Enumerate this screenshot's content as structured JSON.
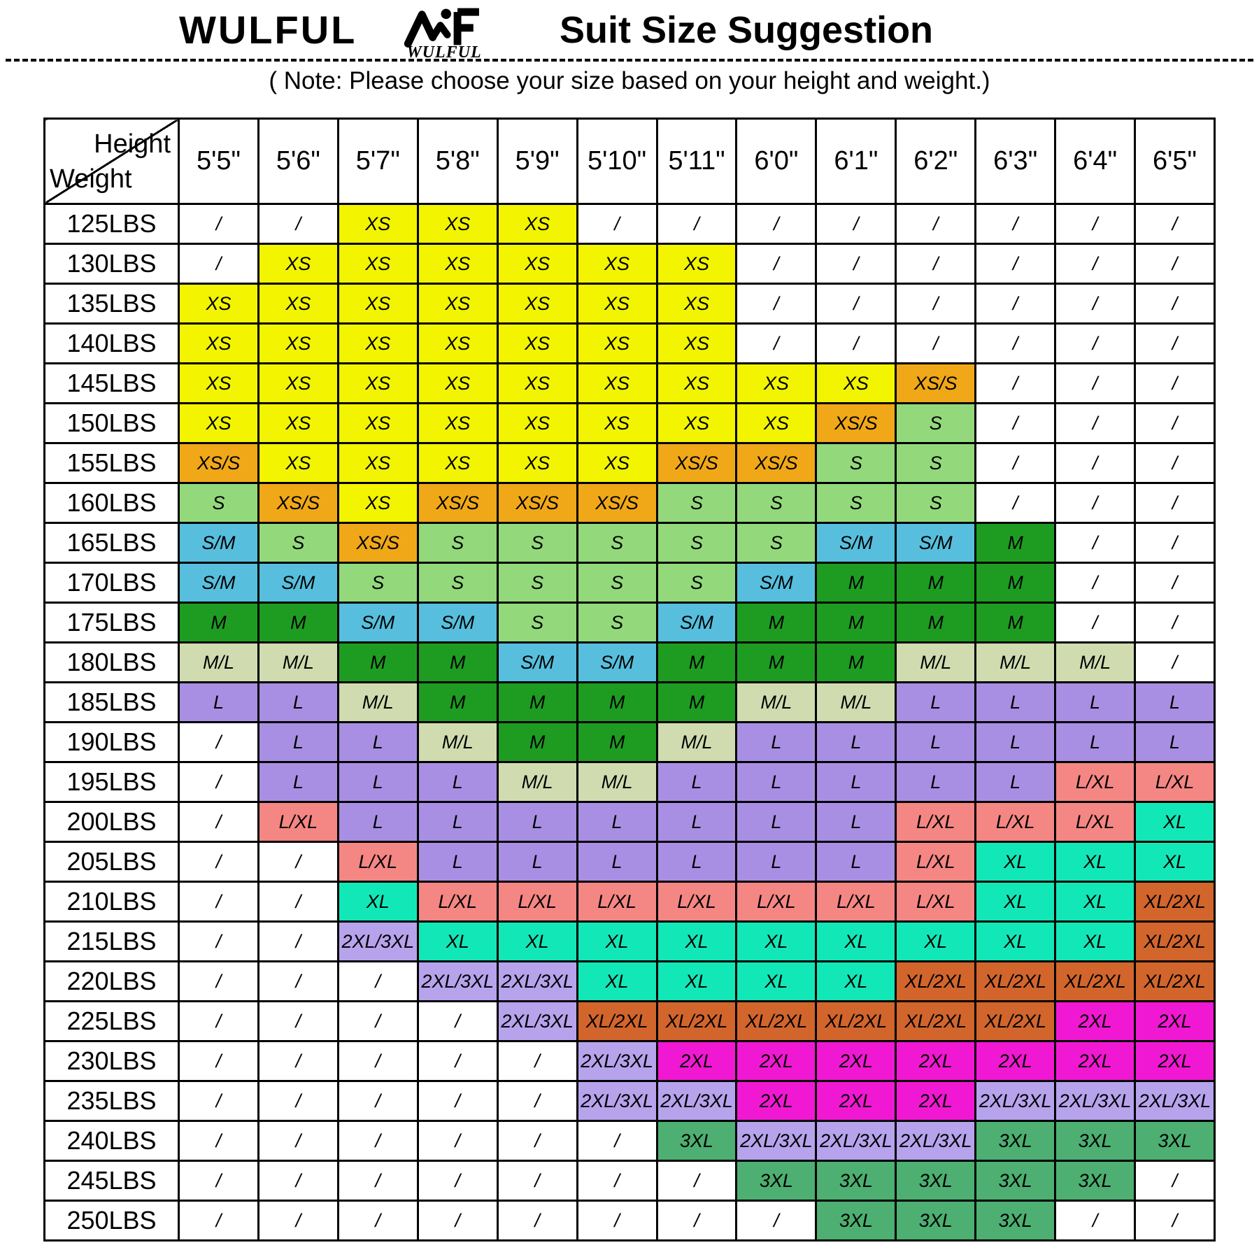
{
  "header": {
    "brand": "WULFUL",
    "logo_text": "WULFUL",
    "title": "Suit Size Suggestion",
    "note": "( Note: Please choose your size based on your height and weight.)"
  },
  "chart_data": {
    "type": "table",
    "title": "Suit Size Suggestion",
    "corner_top_label": "Height",
    "corner_bottom_label": "Weight",
    "columns": [
      "5'5\"",
      "5'6\"",
      "5'7\"",
      "5'8\"",
      "5'9\"",
      "5'10\"",
      "5'11\"",
      "6'0\"",
      "6'1\"",
      "6'2\"",
      "6'3\"",
      "6'4\"",
      "6'5\""
    ],
    "rows": [
      "125LBS",
      "130LBS",
      "135LBS",
      "140LBS",
      "145LBS",
      "150LBS",
      "155LBS",
      "160LBS",
      "165LBS",
      "170LBS",
      "175LBS",
      "180LBS",
      "185LBS",
      "190LBS",
      "195LBS",
      "200LBS",
      "205LBS",
      "210LBS",
      "215LBS",
      "220LBS",
      "225LBS",
      "230LBS",
      "235LBS",
      "240LBS",
      "245LBS",
      "250LBS"
    ],
    "empty_marker": "/",
    "values": [
      [
        "/",
        "/",
        "XS",
        "XS",
        "XS",
        "/",
        "/",
        "/",
        "/",
        "/",
        "/",
        "/",
        "/"
      ],
      [
        "/",
        "XS",
        "XS",
        "XS",
        "XS",
        "XS",
        "XS",
        "/",
        "/",
        "/",
        "/",
        "/",
        "/"
      ],
      [
        "XS",
        "XS",
        "XS",
        "XS",
        "XS",
        "XS",
        "XS",
        "/",
        "/",
        "/",
        "/",
        "/",
        "/"
      ],
      [
        "XS",
        "XS",
        "XS",
        "XS",
        "XS",
        "XS",
        "XS",
        "/",
        "/",
        "/",
        "/",
        "/",
        "/"
      ],
      [
        "XS",
        "XS",
        "XS",
        "XS",
        "XS",
        "XS",
        "XS",
        "XS",
        "XS",
        "XS/S",
        "/",
        "/",
        "/"
      ],
      [
        "XS",
        "XS",
        "XS",
        "XS",
        "XS",
        "XS",
        "XS",
        "XS",
        "XS/S",
        "S",
        "/",
        "/",
        "/"
      ],
      [
        "XS/S",
        "XS",
        "XS",
        "XS",
        "XS",
        "XS",
        "XS/S",
        "XS/S",
        "S",
        "S",
        "/",
        "/",
        "/"
      ],
      [
        "S",
        "XS/S",
        "XS",
        "XS/S",
        "XS/S",
        "XS/S",
        "S",
        "S",
        "S",
        "S",
        "/",
        "/",
        "/"
      ],
      [
        "S/M",
        "S",
        "XS/S",
        "S",
        "S",
        "S",
        "S",
        "S",
        "S/M",
        "S/M",
        "M",
        "/",
        "/"
      ],
      [
        "S/M",
        "S/M",
        "S",
        "S",
        "S",
        "S",
        "S",
        "S/M",
        "M",
        "M",
        "M",
        "/",
        "/"
      ],
      [
        "M",
        "M",
        "S/M",
        "S/M",
        "S",
        "S",
        "S/M",
        "M",
        "M",
        "M",
        "M",
        "/",
        "/"
      ],
      [
        "M/L",
        "M/L",
        "M",
        "M",
        "S/M",
        "S/M",
        "M",
        "M",
        "M",
        "M/L",
        "M/L",
        "M/L",
        "/"
      ],
      [
        "L",
        "L",
        "M/L",
        "M",
        "M",
        "M",
        "M",
        "M/L",
        "M/L",
        "L",
        "L",
        "L",
        "L"
      ],
      [
        "/",
        "L",
        "L",
        "M/L",
        "M",
        "M",
        "M/L",
        "L",
        "L",
        "L",
        "L",
        "L",
        "L"
      ],
      [
        "/",
        "L",
        "L",
        "L",
        "M/L",
        "M/L",
        "L",
        "L",
        "L",
        "L",
        "L",
        "L/XL",
        "L/XL"
      ],
      [
        "/",
        "L/XL",
        "L",
        "L",
        "L",
        "L",
        "L",
        "L",
        "L",
        "L/XL",
        "L/XL",
        "L/XL",
        "XL"
      ],
      [
        "/",
        "/",
        "L/XL",
        "L",
        "L",
        "L",
        "L",
        "L",
        "L",
        "L/XL",
        "XL",
        "XL",
        "XL"
      ],
      [
        "/",
        "/",
        "XL",
        "L/XL",
        "L/XL",
        "L/XL",
        "L/XL",
        "L/XL",
        "L/XL",
        "L/XL",
        "XL",
        "XL",
        "XL/2XL"
      ],
      [
        "/",
        "/",
        "2XL/3XL",
        "XL",
        "XL",
        "XL",
        "XL",
        "XL",
        "XL",
        "XL",
        "XL",
        "XL",
        "XL/2XL"
      ],
      [
        "/",
        "/",
        "/",
        "2XL/3XL",
        "2XL/3XL",
        "XL",
        "XL",
        "XL",
        "XL",
        "XL/2XL",
        "XL/2XL",
        "XL/2XL",
        "XL/2XL"
      ],
      [
        "/",
        "/",
        "/",
        "/",
        "2XL/3XL",
        "XL/2XL",
        "XL/2XL",
        "XL/2XL",
        "XL/2XL",
        "XL/2XL",
        "XL/2XL",
        "2XL",
        "2XL"
      ],
      [
        "/",
        "/",
        "/",
        "/",
        "/",
        "2XL/3XL",
        "2XL",
        "2XL",
        "2XL",
        "2XL",
        "2XL",
        "2XL",
        "2XL"
      ],
      [
        "/",
        "/",
        "/",
        "/",
        "/",
        "2XL/3XL",
        "2XL/3XL",
        "2XL",
        "2XL",
        "2XL",
        "2XL/3XL",
        "2XL/3XL",
        "2XL/3XL"
      ],
      [
        "/",
        "/",
        "/",
        "/",
        "/",
        "/",
        "3XL",
        "2XL/3XL",
        "2XL/3XL",
        "2XL/3XL",
        "3XL",
        "3XL",
        "3XL"
      ],
      [
        "/",
        "/",
        "/",
        "/",
        "/",
        "/",
        "/",
        "3XL",
        "3XL",
        "3XL",
        "3XL",
        "3XL",
        "/"
      ],
      [
        "/",
        "/",
        "/",
        "/",
        "/",
        "/",
        "/",
        "/",
        "3XL",
        "3XL",
        "3XL",
        "/",
        "/"
      ]
    ],
    "size_colors": {
      "XS": "#F2F400",
      "XS/S": "#F0A818",
      "S": "#93D97C",
      "S/M": "#57BFDD",
      "M": "#1E9C22",
      "M/L": "#D0DCB0",
      "L": "#A98FE3",
      "L/XL": "#F48684",
      "XL": "#12E8B7",
      "XL/2XL": "#D2652C",
      "2XL": "#F118D3",
      "2XL/3XL": "#B6A3EC",
      "3XL": "#4DAF71",
      "/": "#FFFFFF"
    },
    "grid_color": "#000000",
    "text_color": "#000000"
  }
}
